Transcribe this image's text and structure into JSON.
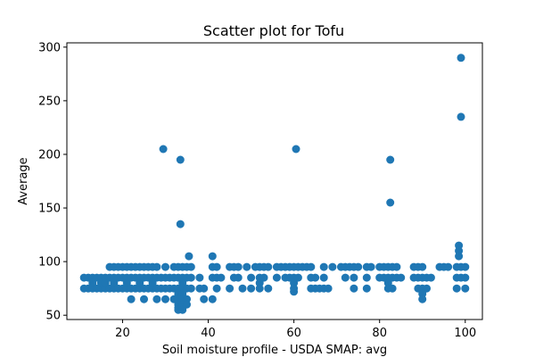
{
  "chart_data": {
    "type": "scatter",
    "title": "Scatter plot for Tofu",
    "xlabel": "Soil moisture profile - USDA SMAP: avg",
    "ylabel": "Average",
    "xlim": [
      7,
      104
    ],
    "ylim": [
      46,
      304
    ],
    "x_ticks": [
      20,
      40,
      60,
      80,
      100
    ],
    "y_ticks": [
      50,
      100,
      150,
      200,
      250,
      300
    ],
    "grid": false,
    "marker_color": "#1f77b4",
    "points": [
      [
        11,
        85
      ],
      [
        11,
        75
      ],
      [
        12,
        85
      ],
      [
        12,
        75
      ],
      [
        13,
        85
      ],
      [
        13,
        75
      ],
      [
        13,
        80
      ],
      [
        14,
        85
      ],
      [
        14,
        75
      ],
      [
        15,
        85
      ],
      [
        15,
        75
      ],
      [
        15,
        80
      ],
      [
        16,
        85
      ],
      [
        16,
        75
      ],
      [
        16,
        80
      ],
      [
        17,
        95
      ],
      [
        17,
        85
      ],
      [
        17,
        75
      ],
      [
        18,
        95
      ],
      [
        18,
        85
      ],
      [
        18,
        75
      ],
      [
        18,
        80
      ],
      [
        19,
        95
      ],
      [
        19,
        85
      ],
      [
        19,
        75
      ],
      [
        20,
        95
      ],
      [
        20,
        85
      ],
      [
        20,
        75
      ],
      [
        21,
        95
      ],
      [
        21,
        85
      ],
      [
        21,
        75
      ],
      [
        21,
        80
      ],
      [
        22,
        95
      ],
      [
        22,
        85
      ],
      [
        22,
        75
      ],
      [
        22,
        65
      ],
      [
        23,
        95
      ],
      [
        23,
        85
      ],
      [
        23,
        75
      ],
      [
        24,
        95
      ],
      [
        24,
        85
      ],
      [
        24,
        75
      ],
      [
        24,
        80
      ],
      [
        25,
        95
      ],
      [
        25,
        85
      ],
      [
        25,
        75
      ],
      [
        25,
        65
      ],
      [
        26,
        95
      ],
      [
        26,
        85
      ],
      [
        26,
        75
      ],
      [
        27,
        95
      ],
      [
        27,
        85
      ],
      [
        27,
        75
      ],
      [
        27,
        80
      ],
      [
        28,
        95
      ],
      [
        28,
        85
      ],
      [
        28,
        75
      ],
      [
        28,
        65
      ],
      [
        29,
        85
      ],
      [
        29,
        75
      ],
      [
        29.5,
        205
      ],
      [
        30,
        95
      ],
      [
        30,
        85
      ],
      [
        30,
        75
      ],
      [
        30,
        65
      ],
      [
        31,
        85
      ],
      [
        31,
        75
      ],
      [
        32,
        95
      ],
      [
        32,
        85
      ],
      [
        32,
        75
      ],
      [
        32,
        65
      ],
      [
        33,
        95
      ],
      [
        33,
        85
      ],
      [
        33,
        75
      ],
      [
        33,
        70
      ],
      [
        33,
        65
      ],
      [
        33,
        60
      ],
      [
        33,
        57
      ],
      [
        33,
        55
      ],
      [
        33.5,
        195
      ],
      [
        33.5,
        135
      ],
      [
        34,
        95
      ],
      [
        34,
        85
      ],
      [
        34,
        80
      ],
      [
        34,
        75
      ],
      [
        34,
        70
      ],
      [
        34,
        65
      ],
      [
        34,
        60
      ],
      [
        34,
        57
      ],
      [
        34,
        55
      ],
      [
        35,
        95
      ],
      [
        35,
        85
      ],
      [
        35,
        75
      ],
      [
        35,
        65
      ],
      [
        35,
        60
      ],
      [
        35.5,
        105
      ],
      [
        36,
        95
      ],
      [
        36,
        85
      ],
      [
        36,
        75
      ],
      [
        38,
        85
      ],
      [
        38,
        75
      ],
      [
        39,
        75
      ],
      [
        39,
        65
      ],
      [
        41,
        105
      ],
      [
        41,
        95
      ],
      [
        41,
        85
      ],
      [
        41,
        65
      ],
      [
        42,
        95
      ],
      [
        42,
        85
      ],
      [
        42,
        75
      ],
      [
        43,
        85
      ],
      [
        45,
        95
      ],
      [
        45,
        75
      ],
      [
        46,
        95
      ],
      [
        46,
        85
      ],
      [
        47,
        95
      ],
      [
        47,
        85
      ],
      [
        48,
        75
      ],
      [
        49,
        95
      ],
      [
        50,
        85
      ],
      [
        50,
        75
      ],
      [
        51,
        95
      ],
      [
        52,
        95
      ],
      [
        52,
        85
      ],
      [
        52,
        80
      ],
      [
        52,
        75
      ],
      [
        53,
        95
      ],
      [
        53,
        85
      ],
      [
        54,
        95
      ],
      [
        54,
        75
      ],
      [
        56,
        95
      ],
      [
        56,
        85
      ],
      [
        57,
        95
      ],
      [
        58,
        95
      ],
      [
        58,
        85
      ],
      [
        59,
        95
      ],
      [
        59,
        85
      ],
      [
        60,
        95
      ],
      [
        60,
        85
      ],
      [
        60,
        80
      ],
      [
        60,
        75
      ],
      [
        60,
        72
      ],
      [
        60.5,
        205
      ],
      [
        61,
        95
      ],
      [
        61,
        85
      ],
      [
        62,
        95
      ],
      [
        63,
        95
      ],
      [
        64,
        95
      ],
      [
        64,
        85
      ],
      [
        64,
        75
      ],
      [
        65,
        85
      ],
      [
        65,
        75
      ],
      [
        66,
        75
      ],
      [
        67,
        95
      ],
      [
        67,
        85
      ],
      [
        67,
        75
      ],
      [
        68,
        75
      ],
      [
        69,
        95
      ],
      [
        71,
        95
      ],
      [
        72,
        95
      ],
      [
        72,
        85
      ],
      [
        73,
        95
      ],
      [
        74,
        95
      ],
      [
        74,
        85
      ],
      [
        74,
        75
      ],
      [
        75,
        95
      ],
      [
        77,
        95
      ],
      [
        77,
        85
      ],
      [
        77,
        75
      ],
      [
        78,
        95
      ],
      [
        80,
        95
      ],
      [
        80,
        85
      ],
      [
        81,
        95
      ],
      [
        81,
        85
      ],
      [
        82,
        95
      ],
      [
        82,
        85
      ],
      [
        82,
        80
      ],
      [
        82,
        75
      ],
      [
        82.5,
        195
      ],
      [
        82.5,
        155
      ],
      [
        83,
        95
      ],
      [
        83,
        85
      ],
      [
        83,
        75
      ],
      [
        84,
        95
      ],
      [
        84,
        85
      ],
      [
        85,
        85
      ],
      [
        88,
        95
      ],
      [
        88,
        85
      ],
      [
        89,
        95
      ],
      [
        89,
        85
      ],
      [
        89,
        75
      ],
      [
        90,
        95
      ],
      [
        90,
        85
      ],
      [
        90,
        75
      ],
      [
        90,
        70
      ],
      [
        90,
        65
      ],
      [
        91,
        85
      ],
      [
        91,
        75
      ],
      [
        92,
        85
      ],
      [
        94,
        95
      ],
      [
        95,
        95
      ],
      [
        96,
        95
      ],
      [
        98,
        95
      ],
      [
        98,
        85
      ],
      [
        98,
        75
      ],
      [
        98.5,
        115
      ],
      [
        98.5,
        110
      ],
      [
        98.5,
        105
      ],
      [
        99,
        95
      ],
      [
        99,
        85
      ],
      [
        99,
        290
      ],
      [
        99,
        235
      ],
      [
        100,
        95
      ],
      [
        100,
        85
      ],
      [
        100,
        75
      ]
    ]
  }
}
